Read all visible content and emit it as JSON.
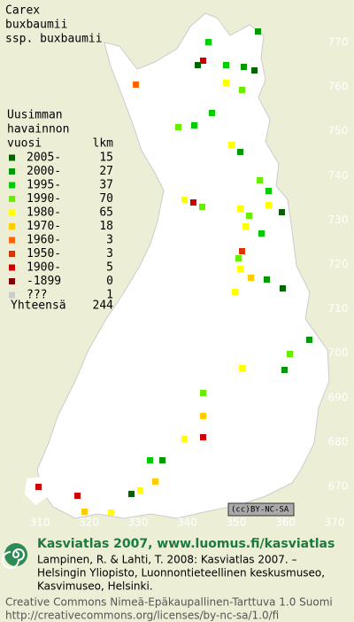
{
  "title": [
    "Carex",
    "buxbaumii",
    "ssp. buxbaumii"
  ],
  "legend": {
    "heading": [
      "Uusimman",
      "havainnon"
    ],
    "col_year": "vuosi",
    "col_count": "lkm",
    "rows": [
      {
        "label": "2005-",
        "count": 15,
        "color": "#006400"
      },
      {
        "label": "2000-",
        "count": 27,
        "color": "#009900"
      },
      {
        "label": "1995-",
        "count": 37,
        "color": "#00cc00"
      },
      {
        "label": "1990-",
        "count": 70,
        "color": "#66ee00"
      },
      {
        "label": "1980-",
        "count": 65,
        "color": "#ffff00"
      },
      {
        "label": "1970-",
        "count": 18,
        "color": "#ffcc00"
      },
      {
        "label": "1960-",
        "count": 3,
        "color": "#ff6600"
      },
      {
        "label": "1950-",
        "count": 3,
        "color": "#dd3300"
      },
      {
        "label": "1900-",
        "count": 5,
        "color": "#cc0000"
      },
      {
        "label": "-1899",
        "count": 0,
        "color": "#800000"
      },
      {
        "label": "???",
        "count": 1,
        "color": "#cccccc"
      }
    ],
    "total_label": "Yhteensä",
    "total": 244
  },
  "map": {
    "xticks": [
      310,
      320,
      330,
      340,
      350,
      360,
      370
    ],
    "yticks": [
      670,
      680,
      690,
      700,
      710,
      720,
      730,
      740,
      750,
      760,
      770
    ]
  },
  "badge": {
    "cc": "(cc)",
    "label": "BY-NC-SA"
  },
  "footer": {
    "site": "Kasviatlas 2007, www.luomus.fi/kasviatlas",
    "citation": [
      "Lampinen, R. & Lahti, T. 2008: Kasviatlas 2007. –",
      "Helsingin Yliopisto, Luonnontieteellinen keskusmuseo,",
      "Kasvimuseo, Helsinki."
    ],
    "license": [
      "Creative Commons Nimeä-Epäkaupallinen-Tarttuva 1.0 Suomi",
      "http://creativecommons.org/licenses/by-nc-sa/1.0/fi"
    ]
  }
}
